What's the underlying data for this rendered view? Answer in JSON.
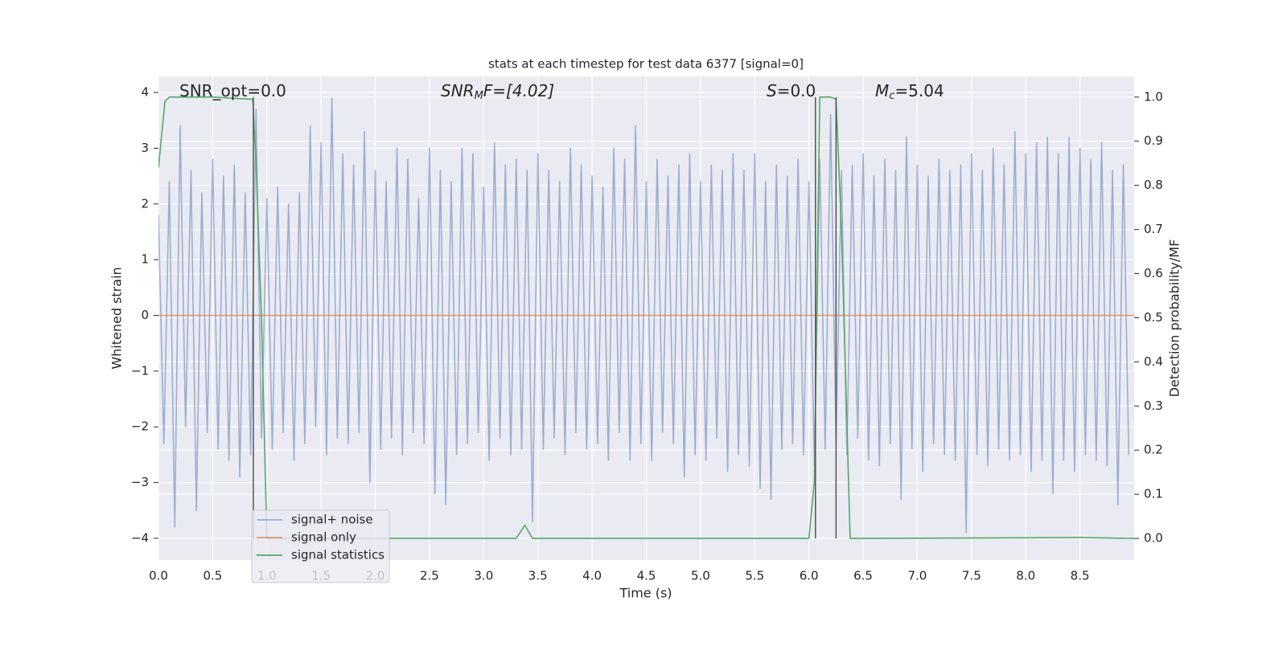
{
  "chart_data": {
    "type": "line",
    "title": "stats at each timestep for test data 6377 [signal=0]",
    "xlabel": "Time (s)",
    "ylabel": "Whitened strain",
    "y2label": "Detection probability/MF",
    "annotations": [
      [
        "SNR_opt=0.0"
      ],
      [
        "SNR",
        "M",
        "F=[4.02]"
      ],
      [
        "S",
        "=0.0"
      ],
      [
        "M",
        "c",
        "=5.04"
      ]
    ],
    "xlim": [
      0,
      9.0
    ],
    "ylim": [
      -4.39,
      4.29
    ],
    "y2lim": [
      -0.049,
      1.047
    ],
    "grid": true,
    "legend": "lower left",
    "xticks": [
      {
        "value": 0,
        "label": "0.0"
      },
      0.5,
      {
        "value": 1,
        "label": "1.0"
      },
      1.5,
      {
        "value": 2,
        "label": "2.0"
      },
      2.5,
      {
        "value": 3,
        "label": "3.0"
      },
      3.5,
      {
        "value": 4,
        "label": "4.0"
      },
      4.5,
      {
        "value": 5,
        "label": "5.0"
      },
      5.5,
      {
        "value": 6,
        "label": "6.0"
      },
      6.5,
      {
        "value": 7,
        "label": "7.0"
      },
      7.5,
      {
        "value": 8,
        "label": "8.0"
      },
      8.5
    ],
    "yticks": [
      {
        "value": -4,
        "label": "−4"
      },
      {
        "value": -3,
        "label": "−3"
      },
      {
        "value": -2,
        "label": "−2"
      },
      {
        "value": -1,
        "label": "−1"
      },
      0,
      1,
      2,
      3,
      4
    ],
    "y2ticks": [
      {
        "value": 0,
        "label": "0.0"
      },
      0.1,
      0.2,
      0.3,
      0.4,
      0.5,
      0.6,
      0.7,
      0.8,
      0.9,
      {
        "value": 1,
        "label": "1.0"
      }
    ],
    "vlines": {
      "x": [
        0.875,
        6.06,
        6.25
      ],
      "ymin": 0,
      "ymax": 1,
      "axis": "y2",
      "color": "#555555"
    },
    "series": [
      {
        "name": "signal+ noise",
        "color": "#4c72b0",
        "opacity": 0.5,
        "x": [
          0,
          0.05,
          0.1,
          0.15,
          0.2,
          0.25,
          0.3,
          0.35,
          0.4,
          0.45,
          0.5,
          0.55,
          0.6,
          0.65,
          0.7,
          0.75,
          0.8,
          0.85,
          0.9,
          0.95,
          1,
          1.05,
          1.1,
          1.15,
          1.2,
          1.25,
          1.3,
          1.35,
          1.4,
          1.45,
          1.5,
          1.55,
          1.6,
          1.65,
          1.7,
          1.75,
          1.8,
          1.85,
          1.9,
          1.95,
          2,
          2.05,
          2.1,
          2.15,
          2.2,
          2.25,
          2.3,
          2.35,
          2.4,
          2.45,
          2.5,
          2.55,
          2.6,
          2.65,
          2.7,
          2.75,
          2.8,
          2.85,
          2.9,
          2.95,
          3,
          3.05,
          3.1,
          3.15,
          3.2,
          3.25,
          3.3,
          3.35,
          3.4,
          3.45,
          3.5,
          3.55,
          3.6,
          3.65,
          3.7,
          3.75,
          3.8,
          3.85,
          3.9,
          3.95,
          4,
          4.05,
          4.1,
          4.15,
          4.2,
          4.25,
          4.3,
          4.35,
          4.4,
          4.45,
          4.5,
          4.55,
          4.6,
          4.65,
          4.7,
          4.75,
          4.8,
          4.85,
          4.9,
          4.95,
          5,
          5.05,
          5.1,
          5.15,
          5.2,
          5.25,
          5.3,
          5.35,
          5.4,
          5.45,
          5.5,
          5.55,
          5.6,
          5.65,
          5.7,
          5.75,
          5.8,
          5.85,
          5.9,
          5.95,
          6,
          6.05,
          6.1,
          6.15,
          6.2,
          6.25,
          6.3,
          6.35,
          6.4,
          6.45,
          6.5,
          6.55,
          6.6,
          6.65,
          6.7,
          6.75,
          6.8,
          6.85,
          6.9,
          6.95,
          7,
          7.05,
          7.1,
          7.15,
          7.2,
          7.25,
          7.3,
          7.35,
          7.4,
          7.45,
          7.5,
          7.55,
          7.6,
          7.65,
          7.7,
          7.75,
          7.8,
          7.85,
          7.9,
          7.95,
          8,
          8.05,
          8.1,
          8.15,
          8.2,
          8.25,
          8.3,
          8.35,
          8.4,
          8.45,
          8.5,
          8.55,
          8.6,
          8.65,
          8.7,
          8.75,
          8.8,
          8.85,
          8.9,
          8.95
        ],
        "values": [
          1.8,
          -2.3,
          2.4,
          -3.8,
          3.4,
          -2.0,
          2.6,
          -3.5,
          2.2,
          -2.1,
          2.8,
          -2.4,
          2.5,
          -2.6,
          2.7,
          -2.9,
          2.2,
          -2.5,
          3.7,
          -2.2,
          2.1,
          -2.4,
          2.3,
          -2.1,
          2.0,
          -2.6,
          2.2,
          -2.3,
          3.4,
          -2.0,
          3.1,
          -2.5,
          3.9,
          -2.2,
          2.9,
          -2.3,
          2.7,
          -2.1,
          3.3,
          -3.0,
          2.6,
          -2.4,
          2.4,
          -2.2,
          3.0,
          -2.5,
          2.8,
          -2.1,
          2.1,
          -2.3,
          3.0,
          -3.2,
          2.6,
          -3.4,
          2.4,
          -2.5,
          3.0,
          -2.3,
          2.9,
          -2.1,
          2.3,
          -2.6,
          3.1,
          -2.2,
          2.7,
          -2.5,
          2.8,
          -2.4,
          2.6,
          -3.7,
          2.9,
          -2.4,
          2.6,
          -2.2,
          2.4,
          -2.5,
          3.0,
          -2.1,
          2.7,
          -2.4,
          2.5,
          -2.3,
          2.3,
          -2.6,
          3.0,
          -2.1,
          2.8,
          -2.6,
          3.4,
          -2.3,
          2.4,
          -2.6,
          2.8,
          -2.1,
          2.5,
          -2.3,
          2.7,
          -2.9,
          2.9,
          -2.5,
          2.4,
          -2.6,
          2.7,
          -2.2,
          2.6,
          -2.8,
          2.9,
          -2.5,
          2.6,
          -2.7,
          2.9,
          -3.1,
          2.4,
          -3.3,
          2.7,
          -2.4,
          2.5,
          -2.3,
          2.8,
          -2.5,
          2.4,
          -2.7,
          2.8,
          -2.4,
          3.6,
          -2.3,
          2.6,
          -2.5,
          2.7,
          -2.2,
          2.9,
          -2.6,
          2.5,
          -2.7,
          2.8,
          -2.3,
          2.6,
          -3.3,
          3.2,
          -2.4,
          2.7,
          -2.8,
          2.5,
          -2.3,
          2.8,
          -2.5,
          2.6,
          -2.6,
          2.7,
          -3.9,
          2.9,
          -2.5,
          2.6,
          -2.7,
          3.0,
          -2.4,
          2.7,
          -2.6,
          3.3,
          -2.5,
          2.9,
          -2.8,
          3.1,
          -2.6,
          3.2,
          -3.2,
          2.9,
          -2.6,
          3.2,
          -2.8,
          3.0,
          -2.5,
          2.8,
          -2.6,
          3.1,
          -2.7,
          2.6,
          -3.4,
          2.7,
          -2.5
        ]
      },
      {
        "name": "signal only",
        "color": "#dd8452",
        "opacity": 0.8,
        "x": [
          0,
          9.0
        ],
        "values": [
          0,
          0
        ]
      },
      {
        "name": "signal statistics",
        "color": "#55a868",
        "opacity": 1,
        "axis": "y2",
        "x": [
          0,
          0.06,
          0.1,
          0.5,
          0.87,
          0.9,
          0.95,
          1.0,
          1.5,
          3.3,
          3.38,
          3.45,
          4.0,
          6.0,
          6.05,
          6.1,
          6.2,
          6.25,
          6.3,
          6.38,
          6.45,
          8.5,
          9.0
        ],
        "values": [
          0.84,
          0.99,
          1.0,
          1.0,
          0.995,
          0.85,
          0.5,
          0.0,
          0,
          0,
          0.03,
          0.0,
          0,
          0,
          0.13,
          1.0,
          1.0,
          0.995,
          0.7,
          0.0,
          0,
          0.002,
          0
        ]
      }
    ]
  }
}
